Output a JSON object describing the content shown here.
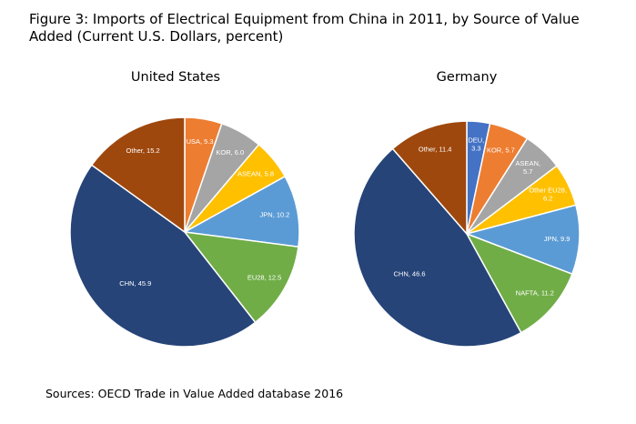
{
  "figure": {
    "title": "Figure 3: Imports of Electrical Equipment from China in 2011, by Source of Value Added (Current U.S. Dollars, percent)",
    "source": "Sources: OECD Trade in Value Added database 2016"
  },
  "colors": {
    "orange": "#ED7D31",
    "gray": "#A5A5A5",
    "gold": "#FFC000",
    "light_blue": "#5B9BD5",
    "green": "#70AD47",
    "navy": "#264478",
    "brown": "#9E480E",
    "blue": "#4472C4"
  },
  "chart_data": [
    {
      "type": "pie",
      "title": "United States",
      "labels": [
        "USA",
        "KOR",
        "ASEAN",
        "JPN",
        "EU28",
        "CHN",
        "Other"
      ],
      "values": [
        5.3,
        6.0,
        5.8,
        10.2,
        12.5,
        45.9,
        15.2
      ],
      "slice_labels": [
        "USA, 5.3",
        "KOR, 6.0",
        "ASEAN, 5.8",
        "JPN, 10.2",
        "EU28, 12.5",
        "CHN, 45.9",
        "Other, 15.2"
      ],
      "colors": [
        "#ED7D31",
        "#A5A5A5",
        "#FFC000",
        "#5B9BD5",
        "#70AD47",
        "#264478",
        "#9E480E"
      ]
    },
    {
      "type": "pie",
      "title": "Germany",
      "labels": [
        "DEU",
        "KOR",
        "ASEAN",
        "Other EU28",
        "JPN",
        "NAFTA",
        "CHN",
        "Other"
      ],
      "values": [
        3.3,
        5.7,
        5.7,
        6.2,
        9.9,
        11.2,
        46.6,
        11.4
      ],
      "slice_labels": [
        [
          "DEU,",
          "3.3"
        ],
        [
          "KOR, 5.7"
        ],
        [
          "ASEAN,",
          "5.7"
        ],
        [
          "Other EU28,",
          "6.2"
        ],
        [
          "JPN, 9.9"
        ],
        [
          "NAFTA, 11.2"
        ],
        [
          "CHN, 46.6"
        ],
        [
          "Other, 11.4"
        ]
      ],
      "colors": [
        "#4472C4",
        "#ED7D31",
        "#A5A5A5",
        "#FFC000",
        "#5B9BD5",
        "#70AD47",
        "#264478",
        "#9E480E"
      ]
    }
  ]
}
